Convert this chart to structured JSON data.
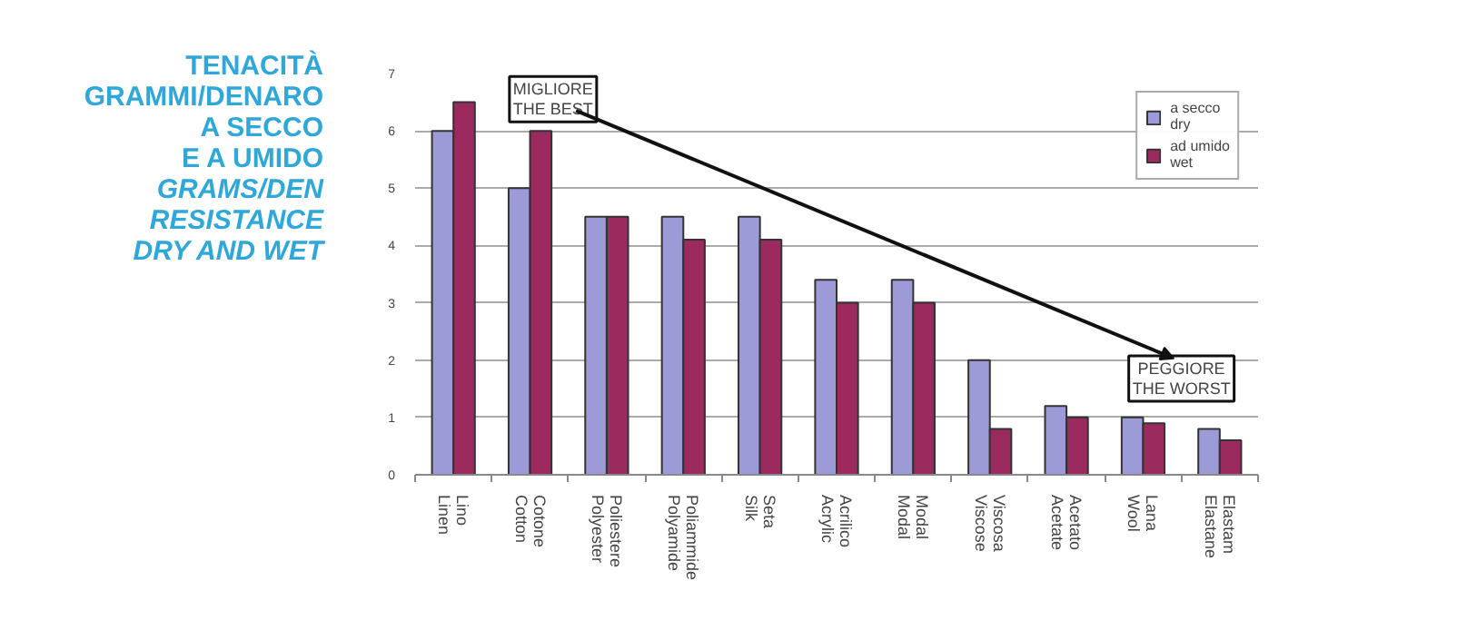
{
  "chart_data": {
    "type": "bar",
    "title": "TENACITÀ\nGRAMMI/DENARO\nA SECCO\nE A UMIDO",
    "subtitle": "GRAMS/DEN\nRESISTANCE\nDRY AND WET",
    "categories": [
      "Lino\nLinen",
      "Cotone\nCotton",
      "Poliestere\nPolyester",
      "Poliammide\nPolyamide",
      "Seta\nSilk",
      "Acrilico\nAcrylic",
      "Modal\nModal",
      "Viscosa\nViscose",
      "Acetato\nAcetate",
      "Lana\nWool",
      "Elastam\nElastane"
    ],
    "series": [
      {
        "name": "a secco\ndry",
        "color": "#9d9ad8",
        "values": [
          6,
          5,
          4.5,
          4.5,
          4.5,
          3.4,
          3.4,
          2.0,
          1.2,
          1.0,
          0.8
        ]
      },
      {
        "name": "ad umido\nwet",
        "color": "#9b2a5e",
        "values": [
          6.5,
          6,
          4.5,
          4.1,
          4.1,
          3.0,
          3.0,
          0.8,
          1.0,
          0.9,
          0.6
        ]
      }
    ],
    "annotations": [
      "MIGLIORE\nTHE BEST",
      "PEGGIORE\nTHE WORST"
    ],
    "ylim": [
      0,
      7
    ],
    "yticks": [
      0,
      1,
      2,
      3,
      4,
      5,
      6,
      7
    ],
    "grid": "y",
    "legend": "top right"
  }
}
